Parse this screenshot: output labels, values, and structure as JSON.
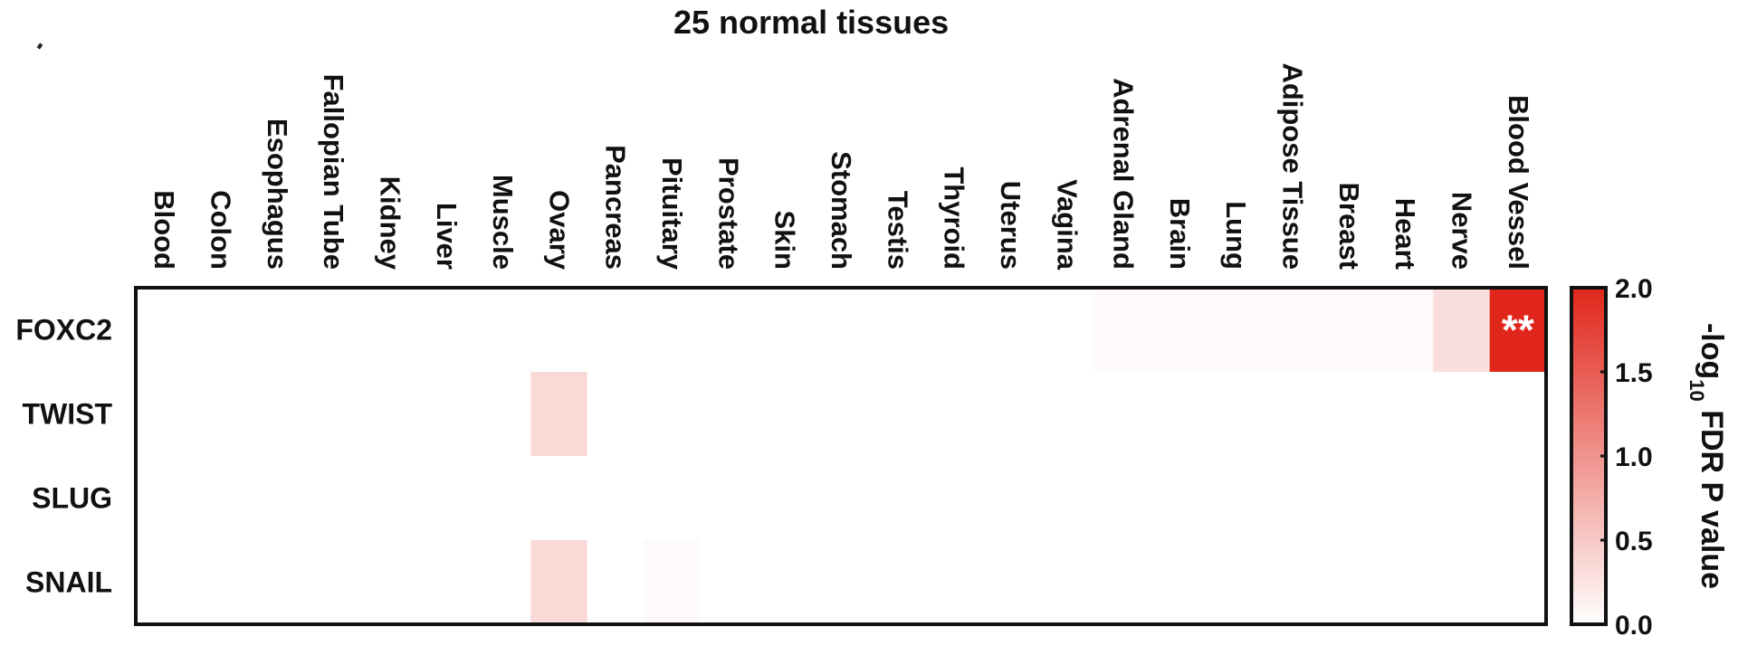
{
  "chart_data": {
    "type": "heatmap",
    "title": "25 normal tissues",
    "columns": [
      "Blood",
      "Colon",
      "Esophagus",
      "Fallopian Tube",
      "Kidney",
      "Liver",
      "Muscle",
      "Ovary",
      "Pancreas",
      "Pituitary",
      "Prostate",
      "Skin",
      "Stomach",
      "Testis",
      "Thyroid",
      "Uterus",
      "Vagina",
      "Adrenal Gland",
      "Brain",
      "Lung",
      "Adipose Tissue",
      "Breast",
      "Heart",
      "Nerve",
      "Blood Vessel"
    ],
    "rows": [
      "FOXC2",
      "TWIST",
      "SLUG",
      "SNAIL"
    ],
    "values": [
      [
        0,
        0,
        0,
        0,
        0,
        0,
        0,
        0,
        0,
        0,
        0,
        0,
        0,
        0,
        0,
        0,
        0,
        0.05,
        0.05,
        0.05,
        0.05,
        0.05,
        0.05,
        0.3,
        2.0
      ],
      [
        0,
        0,
        0,
        0,
        0,
        0,
        0,
        0.35,
        0,
        0,
        0,
        0,
        0,
        0,
        0,
        0,
        0,
        0,
        0,
        0,
        0,
        0,
        0,
        0,
        0
      ],
      [
        0,
        0,
        0,
        0,
        0,
        0,
        0,
        0,
        0,
        0,
        0,
        0,
        0,
        0,
        0,
        0,
        0,
        0,
        0,
        0,
        0,
        0,
        0,
        0,
        0
      ],
      [
        0,
        0,
        0,
        0,
        0,
        0,
        0,
        0.35,
        0,
        0.05,
        0,
        0,
        0,
        0,
        0,
        0,
        0,
        0,
        0,
        0,
        0,
        0,
        0,
        0,
        0
      ]
    ],
    "annotations": [
      {
        "row": 0,
        "col": 24,
        "text": "**"
      }
    ],
    "colorbar": {
      "label_main": "-log",
      "label_sub": "10",
      "label_rest": " FDR P value",
      "range": [
        0,
        2.0
      ],
      "ticks": [
        "0.0",
        "0.5",
        "1.0",
        "1.5",
        "2.0"
      ],
      "color_low": "#ffffff",
      "color_high": "#e0261b"
    }
  }
}
